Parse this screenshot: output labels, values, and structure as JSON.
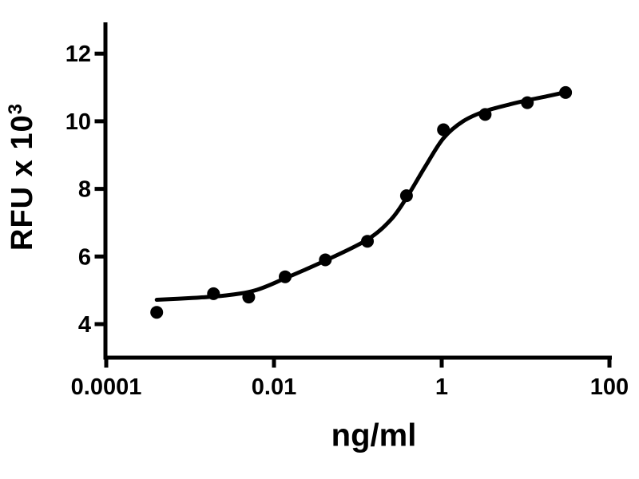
{
  "page": {
    "background": "#ffffff"
  },
  "chart_data": {
    "type": "scatter",
    "title": "",
    "xlabel": "ng/ml",
    "ylabel_base": "RFU x 10",
    "ylabel_exponent": "3",
    "x_scale": "log",
    "y_scale": "linear",
    "xlim": [
      0.0001,
      100
    ],
    "ylim": [
      3,
      13
    ],
    "grid": false,
    "legend": null,
    "x_ticks": [
      {
        "label": "0.0001",
        "value": 0.0001
      },
      {
        "label": "0.01",
        "value": 0.01
      },
      {
        "label": "1",
        "value": 1
      },
      {
        "label": "100",
        "value": 100
      }
    ],
    "y_ticks": [
      {
        "label": "4",
        "value": 4
      },
      {
        "label": "6",
        "value": 6
      },
      {
        "label": "8",
        "value": 8
      },
      {
        "label": "10",
        "value": 10
      },
      {
        "label": "12",
        "value": 12
      }
    ],
    "colors": {
      "points": "#000000",
      "curve": "#000000",
      "axis": "#000000",
      "text": "#000000",
      "background": "#ffffff"
    },
    "points": [
      {
        "x": 0.0004,
        "y": 4.35
      },
      {
        "x": 0.0019,
        "y": 4.9
      },
      {
        "x": 0.005,
        "y": 4.8
      },
      {
        "x": 0.0136,
        "y": 5.4
      },
      {
        "x": 0.041,
        "y": 5.9
      },
      {
        "x": 0.13,
        "y": 6.45
      },
      {
        "x": 0.38,
        "y": 7.8
      },
      {
        "x": 1.05,
        "y": 9.75
      },
      {
        "x": 3.3,
        "y": 10.2
      },
      {
        "x": 10.5,
        "y": 10.55
      },
      {
        "x": 30,
        "y": 10.85
      }
    ],
    "fit_curve": [
      {
        "x": 0.0004,
        "y": 4.72
      },
      {
        "x": 0.001,
        "y": 4.77
      },
      {
        "x": 0.0025,
        "y": 4.84
      },
      {
        "x": 0.006,
        "y": 5.0
      },
      {
        "x": 0.014,
        "y": 5.37
      },
      {
        "x": 0.041,
        "y": 5.88
      },
      {
        "x": 0.13,
        "y": 6.5
      },
      {
        "x": 0.25,
        "y": 7.1
      },
      {
        "x": 0.39,
        "y": 7.78
      },
      {
        "x": 0.65,
        "y": 8.7
      },
      {
        "x": 1.05,
        "y": 9.5
      },
      {
        "x": 1.8,
        "y": 10.0
      },
      {
        "x": 3.3,
        "y": 10.3
      },
      {
        "x": 6.5,
        "y": 10.5
      },
      {
        "x": 10.5,
        "y": 10.62
      },
      {
        "x": 18,
        "y": 10.74
      },
      {
        "x": 30,
        "y": 10.86
      }
    ]
  }
}
